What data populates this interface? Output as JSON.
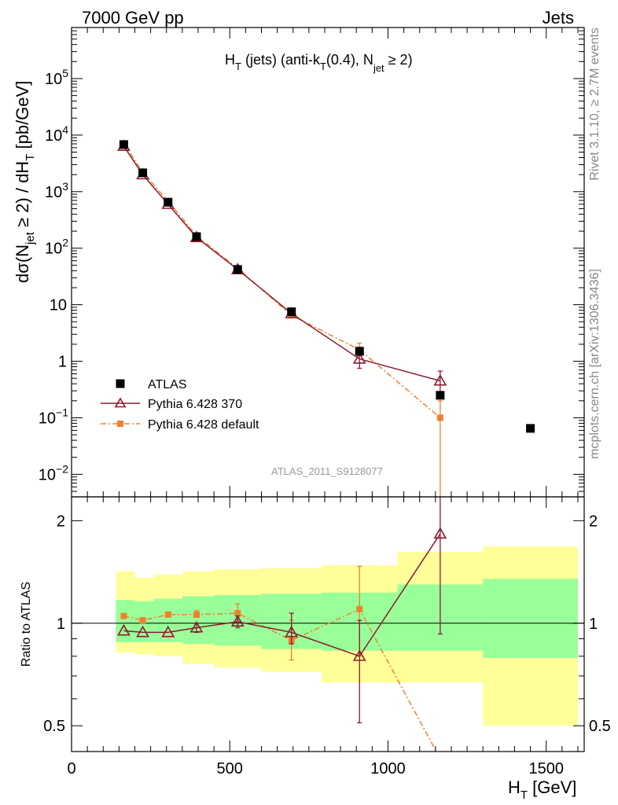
{
  "header": {
    "left": "7000 GeV pp",
    "right": "Jets"
  },
  "side_labels": {
    "rivet": "Rivet 3.1.10, ≥ 2.7M events",
    "mcplots": "mcplots.cern.ch [arXiv:1306.3436]"
  },
  "analysis_id": "ATLAS_2011_S9128077",
  "chart_data": [
    {
      "type": "scatter",
      "title": "H_T (jets) (anti-k_T(0.4), N_jet ≥ 2)",
      "ylabel": "dσ(N_jet ≥ 2) / dH_T [pb/GeV]",
      "xlabel": "H_T [GeV]",
      "xlim": [
        0,
        1620
      ],
      "ylim": [
        0.004,
        800000
      ],
      "yscale": "log",
      "y_ticks": [
        "10^5",
        "10^4",
        "10^3",
        "10^2",
        "10",
        "1",
        "10^-1",
        "10^-2"
      ],
      "legend_position": "lower-left",
      "series": [
        {
          "name": "ATLAS",
          "color": "#000000",
          "marker": "square",
          "x": [
            165,
            225,
            305,
            395,
            525,
            695,
            910,
            1165,
            1450
          ],
          "y": [
            6800,
            2150,
            650,
            160,
            42,
            7.5,
            1.5,
            0.25,
            0.065
          ]
        },
        {
          "name": "Pythia 6.428 370",
          "color": "#8b1a2e",
          "marker": "open-triangle",
          "x": [
            165,
            225,
            305,
            395,
            525,
            695,
            910,
            1165
          ],
          "y": [
            6400,
            2000,
            600,
            155,
            42,
            7.0,
            1.1,
            0.45
          ],
          "err_lo": [
            0,
            0,
            0,
            0,
            0,
            0,
            0.35,
            0.2
          ],
          "err_hi": [
            0,
            0,
            0,
            0,
            0,
            0,
            0.3,
            0.22
          ]
        },
        {
          "name": "Pythia 6.428 default",
          "color": "#f08030",
          "marker": "filled-square",
          "x": [
            165,
            225,
            305,
            395,
            525,
            695,
            910,
            1165
          ],
          "y": [
            7100,
            2200,
            680,
            165,
            44,
            6.5,
            1.6,
            0.1
          ],
          "err_lo": [
            0,
            0,
            0,
            0,
            0,
            0,
            0.3,
            0.1
          ],
          "err_hi": [
            0,
            0,
            0,
            0,
            0,
            0,
            0.5,
            0.1
          ]
        }
      ]
    },
    {
      "type": "scatter",
      "ylabel": "Ratio to ATLAS",
      "xlabel": "H_T [GeV]",
      "xlim": [
        0,
        1620
      ],
      "ylim": [
        0.42,
        2.35
      ],
      "yscale": "log",
      "x_ticks": [
        "0",
        "500",
        "1000",
        "1500"
      ],
      "y_ticks": [
        "2",
        "1",
        "0.5"
      ],
      "bands": {
        "edges": [
          140,
          200,
          260,
          350,
          450,
          600,
          790,
          1030,
          1300,
          1600
        ],
        "yellow_lo": [
          0.82,
          0.81,
          0.8,
          0.76,
          0.74,
          0.72,
          0.67,
          0.67,
          0.5
        ],
        "yellow_hi": [
          1.42,
          1.36,
          1.39,
          1.42,
          1.44,
          1.45,
          1.48,
          1.62,
          1.68
        ],
        "green_lo": [
          0.88,
          0.88,
          0.88,
          0.87,
          0.86,
          0.84,
          0.83,
          0.83,
          0.79
        ],
        "green_hi": [
          1.17,
          1.16,
          1.18,
          1.2,
          1.21,
          1.22,
          1.23,
          1.3,
          1.35
        ]
      },
      "series": [
        {
          "name": "Pythia 6.428 370",
          "color": "#8b1a2e",
          "marker": "open-triangle",
          "x": [
            165,
            225,
            305,
            395,
            525,
            695,
            910,
            1165
          ],
          "y": [
            0.95,
            0.94,
            0.94,
            0.97,
            1.01,
            0.94,
            0.8,
            1.83
          ],
          "err_lo": [
            0,
            0,
            0,
            0.03,
            0.04,
            0.07,
            0.29,
            0.9
          ],
          "err_hi": [
            0,
            0,
            0,
            0.03,
            0.04,
            0.13,
            0.22,
            0.6
          ]
        },
        {
          "name": "Pythia 6.428 default",
          "color": "#f08030",
          "marker": "filled-square",
          "x": [
            165,
            225,
            305,
            395,
            525,
            695,
            910,
            1165
          ],
          "y": [
            1.05,
            1.02,
            1.06,
            1.06,
            1.07,
            0.89,
            1.1,
            0.4
          ],
          "err_lo": [
            0,
            0,
            0,
            0.02,
            0.05,
            0.11,
            0.3,
            0
          ],
          "err_hi": [
            0,
            0,
            0,
            0.03,
            0.07,
            0.13,
            0.37,
            0
          ]
        }
      ]
    }
  ]
}
